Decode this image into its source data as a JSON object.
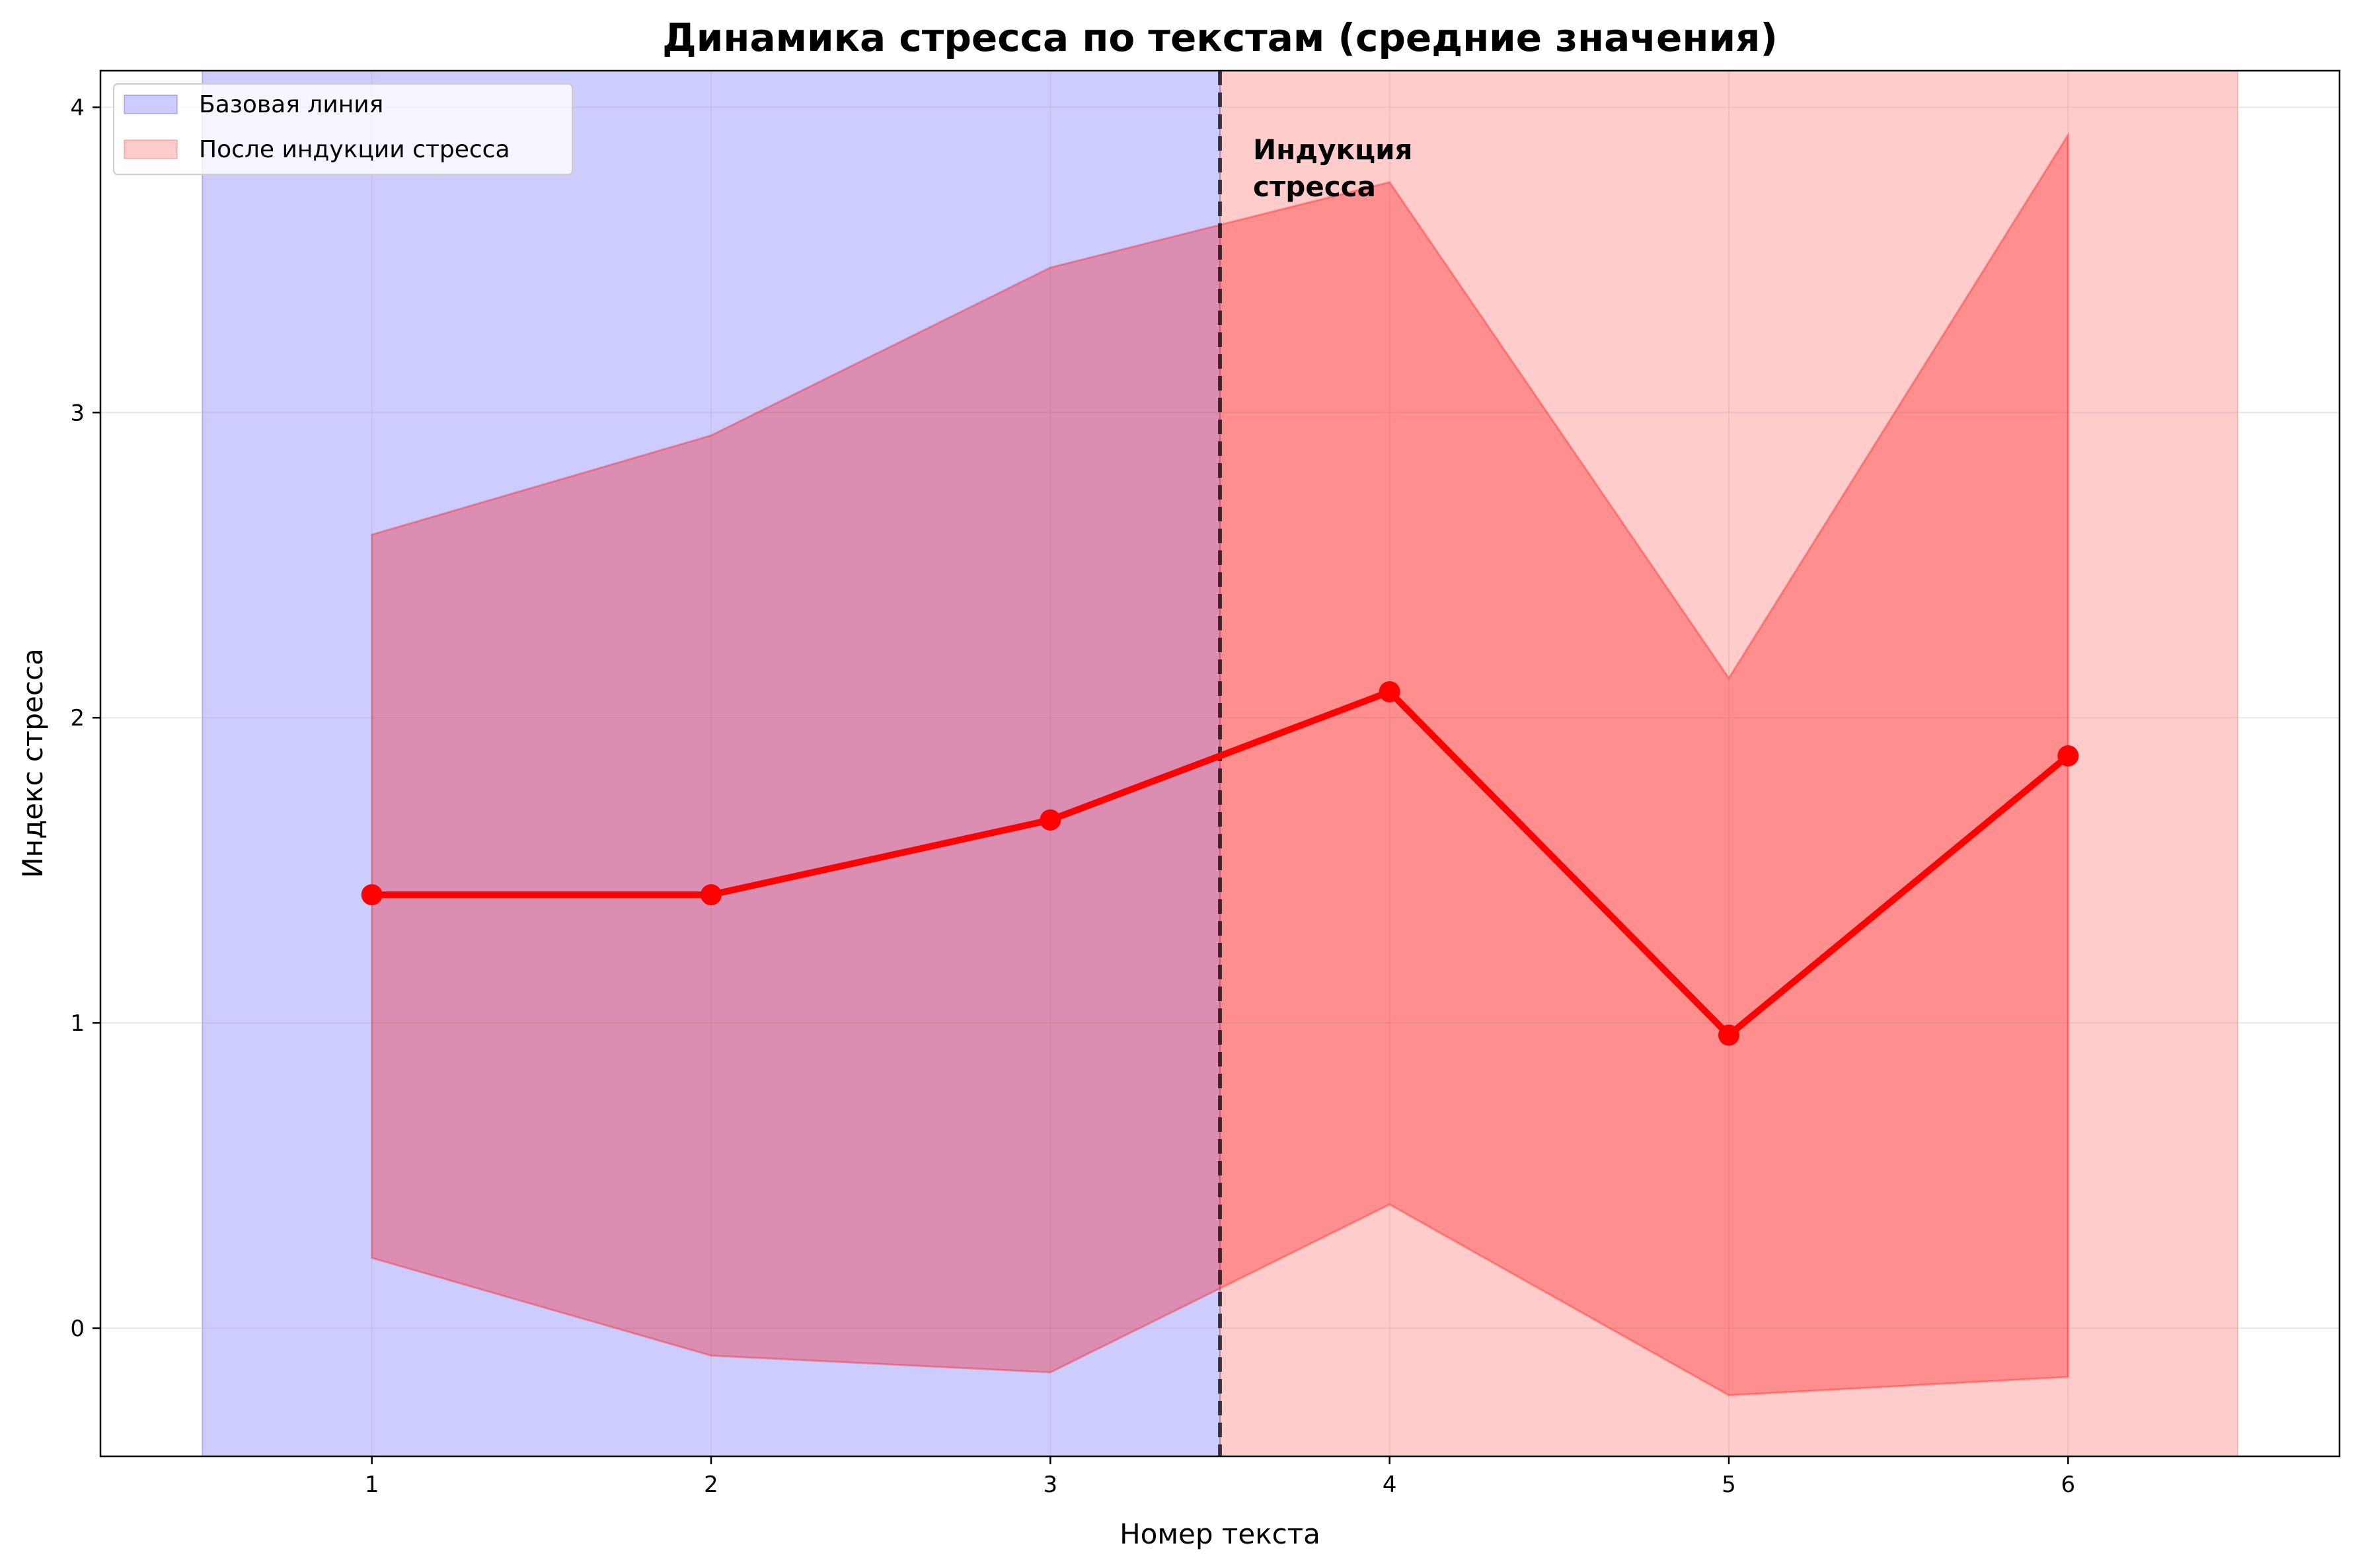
{
  "chart_data": {
    "type": "line",
    "title": "Динамика стресса по текстам (средние значения)",
    "xlabel": "Номер текста",
    "ylabel": "Индекс стресса",
    "x": [
      1,
      2,
      3,
      4,
      5,
      6
    ],
    "xlim": [
      0.2,
      6.8
    ],
    "ylim": [
      -0.42,
      4.12
    ],
    "xticks": [
      1,
      2,
      3,
      4,
      5,
      6
    ],
    "xtick_labels": [
      "1",
      "2",
      "3",
      "4",
      "5",
      "6"
    ],
    "yticks": [
      0,
      1,
      2,
      3,
      4
    ],
    "ytick_labels": [
      "0",
      "1",
      "2",
      "3",
      "4"
    ],
    "grid": true,
    "legend_position": "top-left",
    "series": [
      {
        "values": [
          1.42,
          1.42,
          1.665,
          2.085,
          0.96,
          1.875
        ],
        "band_lower": [
          0.23,
          -0.09,
          -0.145,
          0.405,
          -0.22,
          -0.16
        ],
        "band_upper": [
          2.6,
          2.925,
          3.475,
          3.755,
          2.13,
          3.91
        ],
        "color": "#ff0000"
      }
    ],
    "regions": [
      {
        "label": "Базовая линия",
        "x_start": 0.5,
        "x_end": 3.5,
        "color": "#0000ff"
      },
      {
        "label": "После индукции стресса",
        "x_start": 3.5,
        "x_end": 6.5,
        "color": "#ff0000"
      }
    ],
    "divider": {
      "x": 3.5,
      "style": "dashed",
      "color": "#000000"
    },
    "annotation": {
      "lines": [
        "Индукция",
        "стресса"
      ],
      "x": 3.6,
      "y": 3.72
    }
  }
}
